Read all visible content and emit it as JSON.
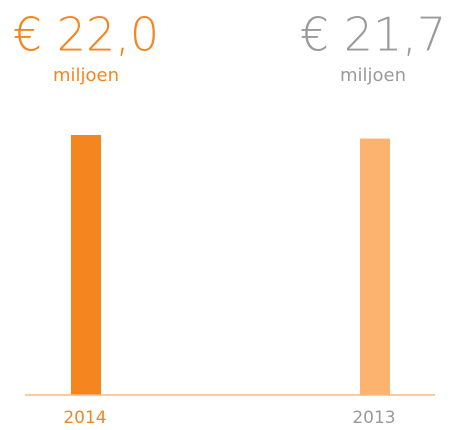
{
  "chart_data": {
    "type": "bar",
    "categories": [
      "2014",
      "2013"
    ],
    "values": [
      22.0,
      21.7
    ],
    "value_labels": [
      "€ 22,0",
      "€ 21,7"
    ],
    "unit": "miljoen",
    "colors": [
      "#f5861f",
      "#fcb370"
    ],
    "label_colors": [
      "#f5861f",
      "#9a9a9a"
    ],
    "axis_color": "#fbb880",
    "ylim": [
      0,
      22.0
    ]
  }
}
